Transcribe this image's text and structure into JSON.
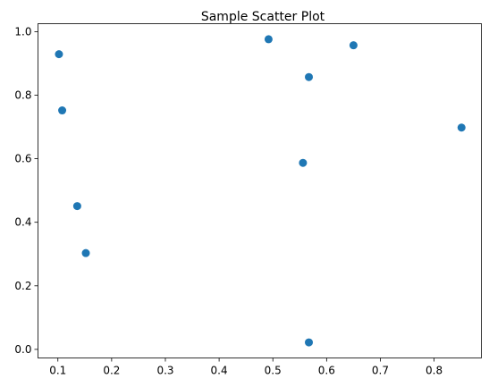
{
  "chart_data": {
    "type": "scatter",
    "title": "Sample Scatter Plot",
    "xlabel": "",
    "ylabel": "",
    "xlim": [
      0.063,
      0.888
    ],
    "ylim": [
      -0.027,
      1.025
    ],
    "xticks": [
      0.1,
      0.2,
      0.3,
      0.4,
      0.5,
      0.6,
      0.7,
      0.8
    ],
    "yticks": [
      0.0,
      0.2,
      0.4,
      0.6,
      0.8,
      1.0
    ],
    "xtick_labels": [
      "0.1",
      "0.2",
      "0.3",
      "0.4",
      "0.5",
      "0.6",
      "0.7",
      "0.8"
    ],
    "ytick_labels": [
      "0.0",
      "0.2",
      "0.4",
      "0.6",
      "0.8",
      "1.0"
    ],
    "grid": false,
    "legend": "none",
    "point_color": "#1f77b4",
    "series": [
      {
        "x": [
          0.102,
          0.108,
          0.136,
          0.152,
          0.492,
          0.556,
          0.567,
          0.567,
          0.65,
          0.851
        ],
        "y": [
          0.929,
          0.752,
          0.451,
          0.303,
          0.976,
          0.587,
          0.857,
          0.022,
          0.957,
          0.698
        ]
      }
    ]
  }
}
